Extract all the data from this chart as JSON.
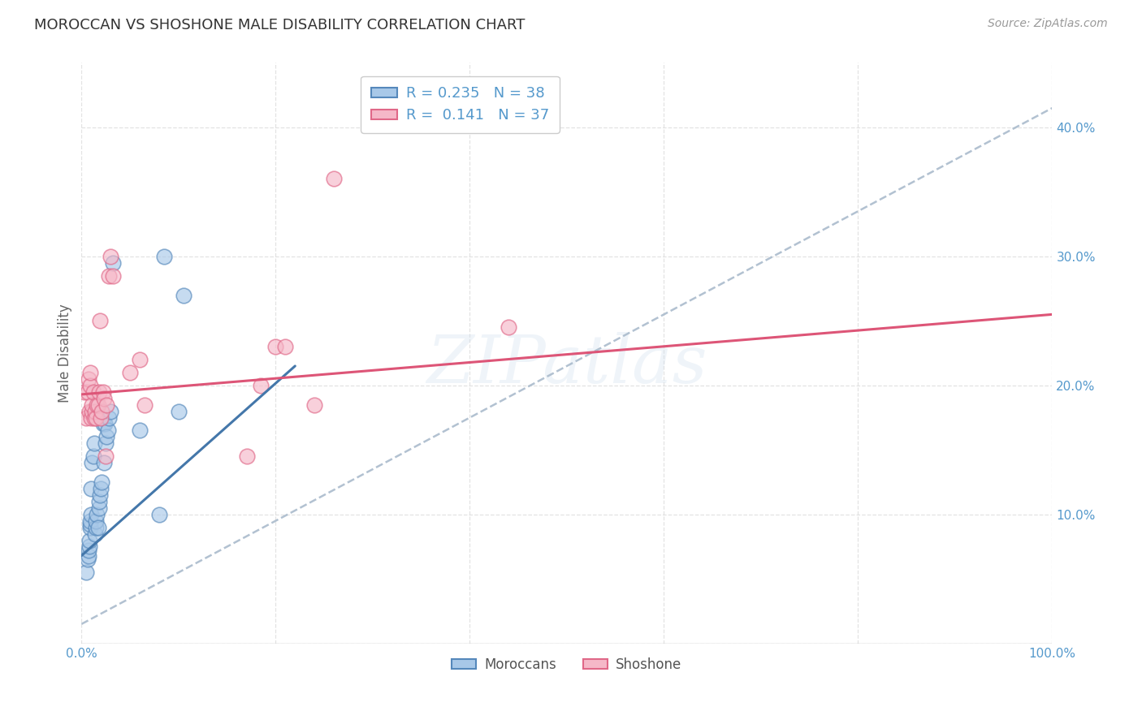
{
  "title": "MOROCCAN VS SHOSHONE MALE DISABILITY CORRELATION CHART",
  "source": "Source: ZipAtlas.com",
  "ylabel": "Male Disability",
  "xlim": [
    0.0,
    1.0
  ],
  "ylim": [
    0.0,
    0.45
  ],
  "xticks": [
    0.0,
    0.2,
    0.4,
    0.6,
    0.8,
    1.0
  ],
  "xtick_labels": [
    "0.0%",
    "",
    "",
    "",
    "",
    "100.0%"
  ],
  "yticks": [
    0.0,
    0.1,
    0.2,
    0.3,
    0.4
  ],
  "ytick_labels": [
    "",
    "10.0%",
    "20.0%",
    "30.0%",
    "40.0%"
  ],
  "legend_r1": "R = 0.235",
  "legend_n1": "N = 38",
  "legend_r2": "R =  0.141",
  "legend_n2": "N = 37",
  "blue_color": "#a8c8e8",
  "pink_color": "#f5b8c8",
  "blue_edge_color": "#5588bb",
  "pink_edge_color": "#e06888",
  "blue_line_color": "#4477aa",
  "pink_line_color": "#dd5577",
  "dashed_line_color": "#aabbcc",
  "grid_color": "#dddddd",
  "title_color": "#333333",
  "axis_label_color": "#5599cc",
  "watermark": "ZIPatlas",
  "moroccan_x": [
    0.005,
    0.006,
    0.007,
    0.007,
    0.008,
    0.008,
    0.009,
    0.009,
    0.009,
    0.01,
    0.01,
    0.011,
    0.012,
    0.013,
    0.014,
    0.015,
    0.015,
    0.016,
    0.017,
    0.018,
    0.018,
    0.019,
    0.02,
    0.021,
    0.022,
    0.023,
    0.024,
    0.025,
    0.026,
    0.027,
    0.028,
    0.03,
    0.032,
    0.06,
    0.08,
    0.085,
    0.1,
    0.105
  ],
  "moroccan_y": [
    0.055,
    0.065,
    0.068,
    0.072,
    0.075,
    0.08,
    0.09,
    0.092,
    0.095,
    0.1,
    0.12,
    0.14,
    0.145,
    0.155,
    0.085,
    0.09,
    0.095,
    0.1,
    0.09,
    0.105,
    0.11,
    0.115,
    0.12,
    0.125,
    0.17,
    0.14,
    0.17,
    0.155,
    0.16,
    0.165,
    0.175,
    0.18,
    0.295,
    0.165,
    0.1,
    0.3,
    0.18,
    0.27
  ],
  "shoshone_x": [
    0.003,
    0.005,
    0.006,
    0.007,
    0.008,
    0.009,
    0.009,
    0.01,
    0.011,
    0.011,
    0.012,
    0.013,
    0.014,
    0.015,
    0.016,
    0.017,
    0.018,
    0.019,
    0.02,
    0.021,
    0.022,
    0.023,
    0.025,
    0.026,
    0.028,
    0.03,
    0.032,
    0.05,
    0.06,
    0.065,
    0.17,
    0.185,
    0.2,
    0.21,
    0.24,
    0.26,
    0.44
  ],
  "shoshone_y": [
    0.195,
    0.175,
    0.195,
    0.205,
    0.18,
    0.2,
    0.21,
    0.175,
    0.18,
    0.185,
    0.195,
    0.175,
    0.18,
    0.175,
    0.185,
    0.185,
    0.195,
    0.25,
    0.175,
    0.18,
    0.195,
    0.19,
    0.145,
    0.185,
    0.285,
    0.3,
    0.285,
    0.21,
    0.22,
    0.185,
    0.145,
    0.2,
    0.23,
    0.23,
    0.185,
    0.36,
    0.245
  ],
  "blue_trendline_x": [
    0.0,
    0.22
  ],
  "blue_trendline_y": [
    0.068,
    0.215
  ],
  "pink_trendline_x": [
    0.0,
    1.0
  ],
  "pink_trendline_y": [
    0.193,
    0.255
  ],
  "dashed_line_x": [
    0.0,
    1.0
  ],
  "dashed_line_y": [
    0.015,
    0.415
  ]
}
